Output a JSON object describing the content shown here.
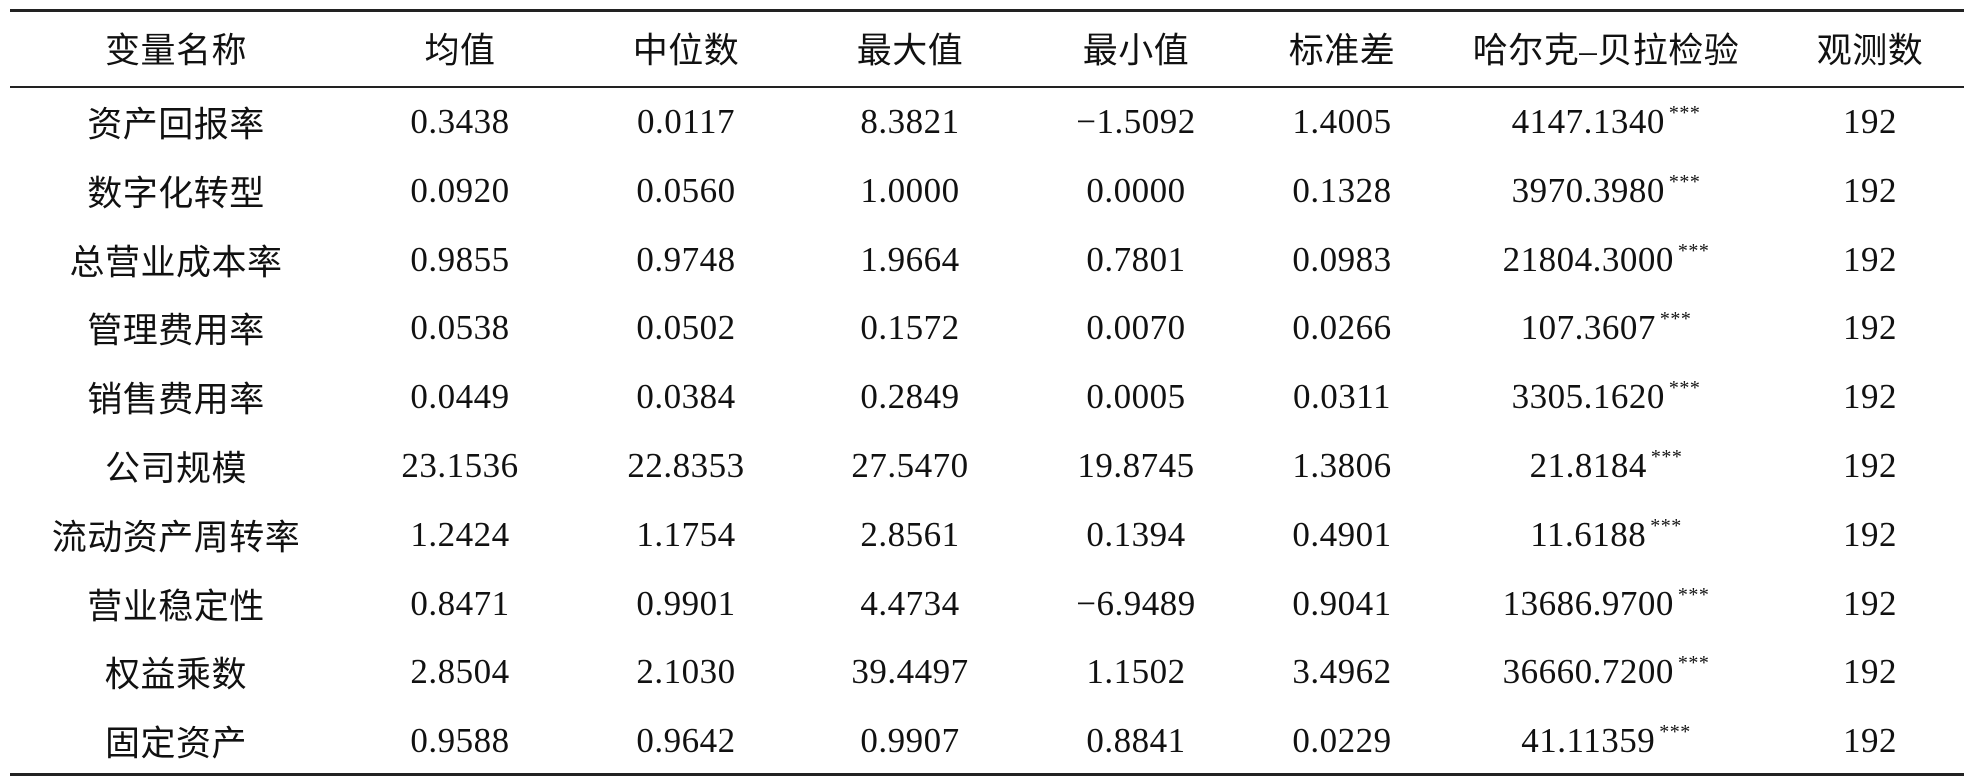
{
  "table": {
    "header": [
      "变量名称",
      "均值",
      "中位数",
      "最大值",
      "最小值",
      "标准差",
      "哈尔克–贝拉检验",
      "观测数"
    ],
    "rows": [
      [
        "资产回报率",
        "0.3438",
        "0.0117",
        "8.3821",
        "−1.5092",
        "1.4005",
        {
          "value": "4147.1340",
          "sig": "***"
        },
        "192"
      ],
      [
        "数字化转型",
        "0.0920",
        "0.0560",
        "1.0000",
        "0.0000",
        "0.1328",
        {
          "value": "3970.3980",
          "sig": "***"
        },
        "192"
      ],
      [
        "总营业成本率",
        "0.9855",
        "0.9748",
        "1.9664",
        "0.7801",
        "0.0983",
        {
          "value": "21804.3000",
          "sig": "***"
        },
        "192"
      ],
      [
        "管理费用率",
        "0.0538",
        "0.0502",
        "0.1572",
        "0.0070",
        "0.0266",
        {
          "value": "107.3607",
          "sig": "***"
        },
        "192"
      ],
      [
        "销售费用率",
        "0.0449",
        "0.0384",
        "0.2849",
        "0.0005",
        "0.0311",
        {
          "value": "3305.1620",
          "sig": "***"
        },
        "192"
      ],
      [
        "公司规模",
        "23.1536",
        "22.8353",
        "27.5470",
        "19.8745",
        "1.3806",
        {
          "value": "21.8184",
          "sig": "***"
        },
        "192"
      ],
      [
        "流动资产周转率",
        "1.2424",
        "1.1754",
        "2.8561",
        "0.1394",
        "0.4901",
        {
          "value": "11.6188",
          "sig": "***"
        },
        "192"
      ],
      [
        "营业稳定性",
        "0.8471",
        "0.9901",
        "4.4734",
        "−6.9489",
        "0.9041",
        {
          "value": "13686.9700",
          "sig": "***"
        },
        "192"
      ],
      [
        "权益乘数",
        "2.8504",
        "2.1030",
        "39.4497",
        "1.1502",
        "3.4962",
        {
          "value": "36660.7200",
          "sig": "***"
        },
        "192"
      ],
      [
        "固定资产",
        "0.9588",
        "0.9642",
        "0.9907",
        "0.8841",
        "0.0229",
        {
          "value": "41.11359",
          "sig": "***"
        },
        "192"
      ]
    ]
  }
}
